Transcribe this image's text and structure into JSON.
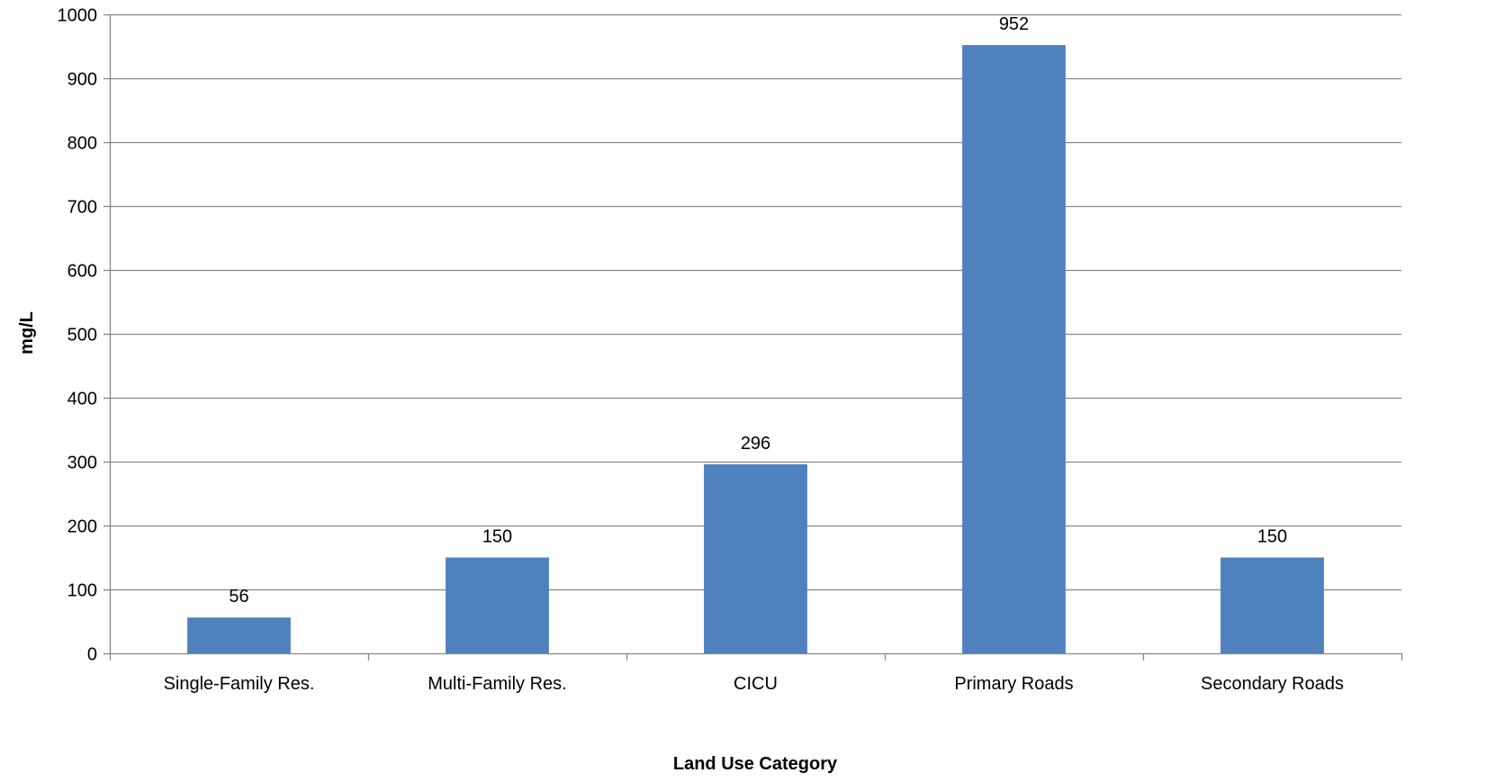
{
  "chart_data": {
    "type": "bar",
    "title": "",
    "xlabel": "Land Use Category",
    "ylabel": "mg/L",
    "categories": [
      "Single-Family Res.",
      "Multi-Family Res.",
      "CICU",
      "Primary Roads",
      "Secondary Roads"
    ],
    "values": [
      56,
      150,
      296,
      952,
      150
    ],
    "data_labels": [
      "56",
      "150",
      "296",
      "952",
      "150"
    ],
    "ylim": [
      0,
      1000
    ],
    "yticks": [
      0,
      100,
      200,
      300,
      400,
      500,
      600,
      700,
      800,
      900,
      1000
    ],
    "ytick_labels": [
      "0",
      "100",
      "200",
      "300",
      "400",
      "500",
      "600",
      "700",
      "800",
      "900",
      "1000"
    ],
    "grid": true,
    "legend": "none",
    "colors": {
      "bar": "#4f81bd",
      "grid": "#868686",
      "axis": "#868686"
    }
  }
}
